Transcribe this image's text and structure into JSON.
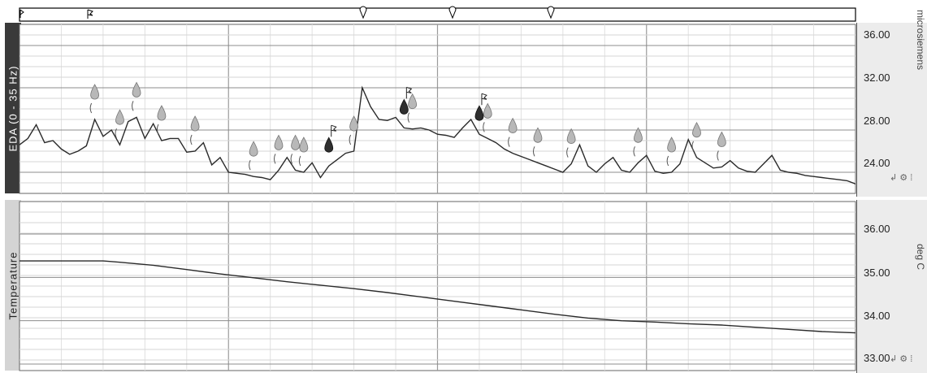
{
  "chart_data": [
    {
      "type": "line",
      "channel": "EDA (0 - 35 Hz)",
      "unit": "microsiemens",
      "ylim": [
        22,
        38
      ],
      "yticks": [
        "36.00",
        "32.00",
        "28.00",
        "24.00"
      ],
      "grid": true,
      "series": [
        {
          "name": "EDA",
          "x": [
            0,
            1,
            2,
            3,
            4,
            5,
            6,
            7,
            8,
            9,
            10,
            11,
            12,
            13,
            14,
            15,
            16,
            17,
            18,
            19,
            20,
            21,
            22,
            23,
            24,
            25,
            26,
            27,
            28,
            29,
            30,
            31,
            32,
            33,
            34,
            35,
            36,
            37,
            38,
            39,
            40,
            41,
            42,
            43,
            44,
            45,
            46,
            47,
            48,
            49,
            50,
            51,
            52,
            53,
            54,
            55,
            56,
            57,
            58,
            59,
            60,
            61,
            62,
            63,
            64,
            65,
            66,
            67,
            68,
            69,
            70,
            71,
            72,
            73,
            74,
            75,
            76,
            77,
            78,
            79,
            80,
            81,
            82,
            83,
            84,
            85,
            86,
            87,
            88,
            89,
            90,
            91,
            92,
            93,
            94,
            95,
            96,
            97,
            98,
            99,
            100
          ],
          "y": [
            26.6,
            27.2,
            28.5,
            26.8,
            27.0,
            26.2,
            25.7,
            26.0,
            26.5,
            29.0,
            27.4,
            28.0,
            26.6,
            28.8,
            29.2,
            27.2,
            28.6,
            27.0,
            27.2,
            27.2,
            25.9,
            26.0,
            26.8,
            24.7,
            25.4,
            24.0,
            23.9,
            23.8,
            23.6,
            23.5,
            23.3,
            24.2,
            25.4,
            24.2,
            24.0,
            24.9,
            23.5,
            24.6,
            25.2,
            25.8,
            26.0,
            32.0,
            30.2,
            29.0,
            28.9,
            29.2,
            28.2,
            28.1,
            28.2,
            28.0,
            27.6,
            27.5,
            27.3,
            28.2,
            29.0,
            27.6,
            27.2,
            26.8,
            26.2,
            25.8,
            25.5,
            25.2,
            24.9,
            24.6,
            24.3,
            24.0,
            24.8,
            26.6,
            24.6,
            24.0,
            24.8,
            25.4,
            24.2,
            24.0,
            24.9,
            25.6,
            24.1,
            23.9,
            24.0,
            24.8,
            27.1,
            25.4,
            24.9,
            24.4,
            24.5,
            25.1,
            24.4,
            24.1,
            24.0,
            24.8,
            25.6,
            24.2,
            24.0,
            23.9,
            23.7,
            23.6,
            23.5,
            23.4,
            23.3,
            23.2,
            22.9
          ]
        }
      ],
      "markers": {
        "light_drops_x": [
          9,
          12,
          14,
          17,
          21,
          28,
          31,
          33,
          34,
          40,
          47,
          56,
          59,
          62,
          66,
          74,
          78,
          81,
          84
        ],
        "dark_flags_x": [
          37,
          46,
          55
        ]
      }
    },
    {
      "type": "line",
      "channel": "Temperature",
      "unit": "deg C",
      "ylim": [
        32.85,
        36.75
      ],
      "yticks": [
        "36.00",
        "35.00",
        "34.00",
        "33.00"
      ],
      "grid": true,
      "series": [
        {
          "name": "Temperature",
          "x": [
            0,
            10,
            12,
            16,
            20,
            24,
            28,
            32,
            36,
            40,
            44,
            48,
            52,
            56,
            60,
            64,
            68,
            72,
            76,
            80,
            84,
            88,
            92,
            96,
            100
          ],
          "y": [
            35.38,
            35.38,
            35.35,
            35.28,
            35.18,
            35.08,
            34.99,
            34.9,
            34.82,
            34.74,
            34.65,
            34.55,
            34.45,
            34.35,
            34.25,
            34.15,
            34.06,
            34.0,
            33.97,
            33.93,
            33.9,
            33.85,
            33.8,
            33.75,
            33.72
          ]
        }
      ]
    }
  ],
  "icons": {
    "panel_tools": "axis-tool-icons"
  }
}
